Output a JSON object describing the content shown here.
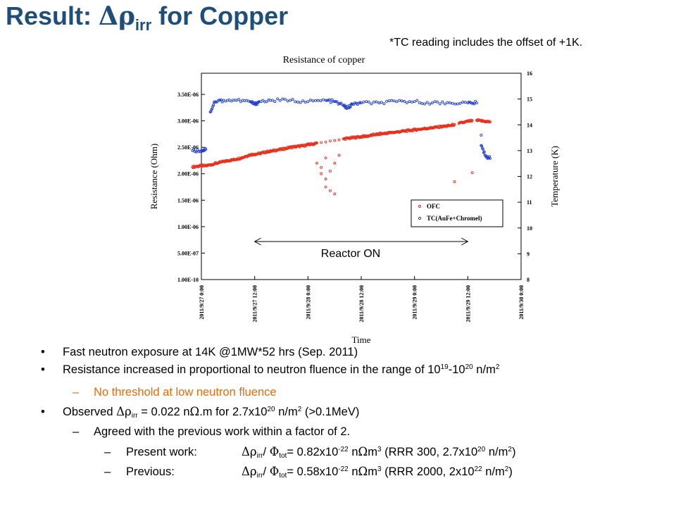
{
  "slide": {
    "title_prefix": "Result: ",
    "title_symbol": "Δρ",
    "title_sub": "irr",
    "title_suffix": " for Copper",
    "note": "*TC reading includes the offset of +1K."
  },
  "annotation": {
    "reactor_label": "Reactor ON",
    "start": "2011/9/27 12:00",
    "end": "2011/9/29 12:00"
  },
  "chart_data": {
    "type": "scatter",
    "title": "Resistance of copper",
    "xlabel": "Time",
    "ylabel": "Resistance (Ohm)",
    "y2label": "Temperature (K)",
    "x_ticks": [
      "2011/9/27 0:00",
      "2011/9/27 12:00",
      "2011/9/28 0:00",
      "2011/9/28 12:00",
      "2011/9/29 0:00",
      "2011/9/29 12:00",
      "2011/9/30 0:00"
    ],
    "y_ticks": [
      "1.00E-10",
      "5.00E-07",
      "1.00E-06",
      "1.50E-06",
      "2.00E-06",
      "2.50E-06",
      "3.00E-06",
      "3.50E-06"
    ],
    "y2_ticks": [
      "8",
      "9",
      "10",
      "11",
      "12",
      "13",
      "14",
      "15",
      "16"
    ],
    "ylim": [
      0,
      3.9e-06
    ],
    "y2lim": [
      8,
      16
    ],
    "legend_position": "lower-right",
    "series": [
      {
        "name": "OFC",
        "axis": "left",
        "color": "#e8301c",
        "points": [
          [
            "2011/9/26 22:00",
            2.13e-06
          ],
          [
            "2011/9/26 23:00",
            2.14e-06
          ],
          [
            "2011/9/27 0:00",
            2.15e-06
          ],
          [
            "2011/9/27 1:00",
            2.15e-06
          ],
          [
            "2011/9/27 2:00",
            2.17e-06
          ],
          [
            "2011/9/27 3:00",
            2.19e-06
          ],
          [
            "2011/9/27 4:00",
            2.21e-06
          ],
          [
            "2011/9/27 5:00",
            2.23e-06
          ],
          [
            "2011/9/27 6:00",
            2.25e-06
          ],
          [
            "2011/9/27 7:00",
            2.26e-06
          ],
          [
            "2011/9/27 8:00",
            2.28e-06
          ],
          [
            "2011/9/27 9:00",
            2.3e-06
          ],
          [
            "2011/9/27 10:00",
            2.33e-06
          ],
          [
            "2011/9/27 11:00",
            2.36e-06
          ],
          [
            "2011/9/27 12:00",
            2.37e-06
          ],
          [
            "2011/9/27 13:00",
            2.38e-06
          ],
          [
            "2011/9/27 14:00",
            2.4e-06
          ],
          [
            "2011/9/27 15:00",
            2.42e-06
          ],
          [
            "2011/9/27 16:00",
            2.43e-06
          ],
          [
            "2011/9/27 17:00",
            2.45e-06
          ],
          [
            "2011/9/27 18:00",
            2.46e-06
          ],
          [
            "2011/9/27 19:00",
            2.48e-06
          ],
          [
            "2011/9/27 20:00",
            2.5e-06
          ],
          [
            "2011/9/27 21:00",
            2.51e-06
          ],
          [
            "2011/9/27 22:00",
            2.52e-06
          ],
          [
            "2011/9/27 23:00",
            2.53e-06
          ],
          [
            "2011/9/28 0:00",
            2.55e-06
          ],
          [
            "2011/9/28 1:00",
            2.56e-06
          ],
          [
            "2011/9/28 2:00",
            2.58e-06
          ],
          [
            "2011/9/28 3:00",
            2.59e-06
          ],
          [
            "2011/9/28 4:00",
            2.6e-06
          ],
          [
            "2011/9/28 5:00",
            2.62e-06
          ],
          [
            "2011/9/28 6:00",
            2.63e-06
          ],
          [
            "2011/9/28 7:00",
            2.64e-06
          ],
          [
            "2011/9/28 8:00",
            2.66e-06
          ],
          [
            "2011/9/28 9:00",
            2.67e-06
          ],
          [
            "2011/9/28 10:00",
            2.68e-06
          ],
          [
            "2011/9/28 11:00",
            2.69e-06
          ],
          [
            "2011/9/28 12:00",
            2.7e-06
          ],
          [
            "2011/9/28 13:00",
            2.71e-06
          ],
          [
            "2011/9/28 14:00",
            2.72e-06
          ],
          [
            "2011/9/28 15:00",
            2.74e-06
          ],
          [
            "2011/9/28 16:00",
            2.75e-06
          ],
          [
            "2011/9/28 17:00",
            2.76e-06
          ],
          [
            "2011/9/28 18:00",
            2.77e-06
          ],
          [
            "2011/9/28 19:00",
            2.78e-06
          ],
          [
            "2011/9/28 20:00",
            2.79e-06
          ],
          [
            "2011/9/28 21:00",
            2.8e-06
          ],
          [
            "2011/9/28 22:00",
            2.81e-06
          ],
          [
            "2011/9/28 23:00",
            2.82e-06
          ],
          [
            "2011/9/29 0:00",
            2.83e-06
          ],
          [
            "2011/9/29 1:00",
            2.84e-06
          ],
          [
            "2011/9/29 2:00",
            2.85e-06
          ],
          [
            "2011/9/29 3:00",
            2.86e-06
          ],
          [
            "2011/9/29 4:00",
            2.87e-06
          ],
          [
            "2011/9/29 5:00",
            2.88e-06
          ],
          [
            "2011/9/29 6:00",
            2.89e-06
          ],
          [
            "2011/9/29 7:00",
            2.9e-06
          ],
          [
            "2011/9/29 8:00",
            2.91e-06
          ],
          [
            "2011/9/29 9:00",
            2.93e-06
          ],
          [
            "2011/9/29 10:00",
            2.95e-06
          ],
          [
            "2011/9/29 11:00",
            2.97e-06
          ],
          [
            "2011/9/29 12:00",
            2.99e-06
          ],
          [
            "2011/9/29 13:00",
            3e-06
          ],
          [
            "2011/9/29 14:00",
            3.01e-06
          ],
          [
            "2011/9/29 15:00",
            3e-06
          ],
          [
            "2011/9/29 16:00",
            2.99e-06
          ],
          [
            "2011/9/29 17:00",
            2.98e-06
          ],
          [
            "2011/9/28 2:00",
            2.2e-06
          ],
          [
            "2011/9/28 3:00",
            2e-06
          ],
          [
            "2011/9/28 3:00",
            2.12e-06
          ],
          [
            "2011/9/28 4:00",
            1.75e-06
          ],
          [
            "2011/9/28 4:00",
            1.9e-06
          ],
          [
            "2011/9/28 4:00",
            2.3e-06
          ],
          [
            "2011/9/28 5:00",
            1.68e-06
          ],
          [
            "2011/9/28 5:00",
            2.05e-06
          ],
          [
            "2011/9/28 6:00",
            1.62e-06
          ],
          [
            "2011/9/28 6:00",
            2.2e-06
          ],
          [
            "2011/9/28 7:00",
            2.35e-06
          ],
          [
            "2011/9/29 9:00",
            1.85e-06
          ],
          [
            "2011/9/29 13:00",
            2.02e-06
          ]
        ]
      },
      {
        "name": "TC(AuFe+Chromel)",
        "axis": "right",
        "color": "#1f3fd0",
        "points": [
          [
            "2011/9/26 22:00",
            13.0
          ],
          [
            "2011/9/27 0:00",
            13.0
          ],
          [
            "2011/9/27 1:00",
            13.05
          ],
          [
            "2011/9/27 2:00",
            14.5
          ],
          [
            "2011/9/27 3:00",
            14.9
          ],
          [
            "2011/9/27 5:00",
            14.95
          ],
          [
            "2011/9/27 8:00",
            14.95
          ],
          [
            "2011/9/27 11:00",
            14.9
          ],
          [
            "2011/9/27 12:00",
            14.8
          ],
          [
            "2011/9/27 13:00",
            14.9
          ],
          [
            "2011/9/27 16:00",
            14.95
          ],
          [
            "2011/9/27 20:00",
            14.95
          ],
          [
            "2011/9/28 0:00",
            14.9
          ],
          [
            "2011/9/28 4:00",
            14.95
          ],
          [
            "2011/9/28 6:00",
            14.9
          ],
          [
            "2011/9/28 8:00",
            14.75
          ],
          [
            "2011/9/28 9:00",
            14.65
          ],
          [
            "2011/9/28 10:00",
            14.8
          ],
          [
            "2011/9/28 12:00",
            14.85
          ],
          [
            "2011/9/28 16:00",
            14.85
          ],
          [
            "2011/9/28 20:00",
            14.9
          ],
          [
            "2011/9/29 0:00",
            14.9
          ],
          [
            "2011/9/29 4:00",
            14.85
          ],
          [
            "2011/9/29 8:00",
            14.85
          ],
          [
            "2011/9/29 12:00",
            14.85
          ],
          [
            "2011/9/29 14:00",
            14.85
          ],
          [
            "2011/9/29 15:00",
            13.6
          ],
          [
            "2011/9/29 16:00",
            12.8
          ],
          [
            "2011/9/29 17:00",
            12.7
          ],
          [
            "2011/9/29 15:00",
            13.2
          ]
        ]
      }
    ]
  },
  "bullets": [
    {
      "text": "Fast neutron exposure at 14K @1MW*52 hrs (Sep. 2011)"
    },
    {
      "a": "Resistance increased in proportional to neutron fluence in the range of 10",
      "s1": "19",
      "b": "-10",
      "s2": "20",
      "c": " n/m",
      "s3": "2"
    },
    {
      "text": "No threshold at low neutron fluence"
    },
    {
      "a": "Observed ",
      "sym": "Δρ",
      "sb": "irr",
      "b": " = 0.022 n",
      "om": "Ω",
      "c": ".m for 2.7x10",
      "s1": "20",
      "d": " n/m",
      "s2": "2",
      "e": " (>0.1MeV)"
    },
    {
      "text": "Agreed with the previous work within a factor of 2."
    },
    {
      "label": "Present work:",
      "sym": "Δρ",
      "sb1": "irr",
      "slash": "/ ",
      "phi": "Φ",
      "sb2": "tot",
      "a": "= 0.82x10",
      "s1": "-22",
      "b": " n",
      "om": "Ω",
      "c": "m",
      "s2": "3",
      "d": " (RRR 300, 2.7x10",
      "s3": "20",
      "e": " n/m",
      "s4": "2",
      "f": ")"
    },
    {
      "label": "Previous:",
      "sym": "Δρ",
      "sb1": "irr",
      "slash": "/ ",
      "phi": "Φ",
      "sb2": "tot",
      "a": "= 0.58x10",
      "s1": "-22",
      "b": " n",
      "om": "Ω",
      "c": "m",
      "s2": "3",
      "d": " (RRR 2000, 2x10",
      "s3": "22",
      "e": " n/m",
      "s4": "2",
      "f": ")"
    }
  ],
  "markers": {
    "bullet": "•",
    "dash": "–"
  }
}
